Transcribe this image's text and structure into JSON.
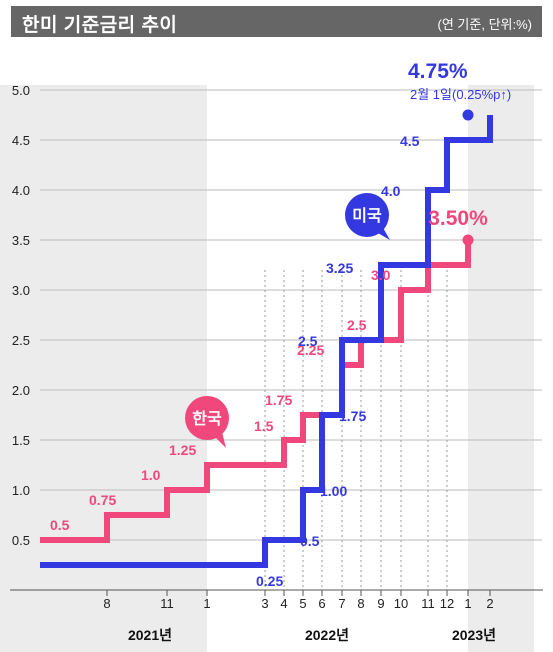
{
  "header": {
    "title": "한미 기준금리 추이",
    "unit": "(연 기준, 단위:%)"
  },
  "colors": {
    "us": "#3438e0",
    "kr": "#f0477d",
    "shade": "#ececec",
    "grid": "#bbbbbb",
    "title_bg": "#666666"
  },
  "chart_data": {
    "type": "line",
    "subtype": "step",
    "title": "한미 기준금리 추이",
    "unit": "(연 기준, 단위:%)",
    "ylim": [
      0,
      5.0
    ],
    "y_ticks": [
      "0.5",
      "1.0",
      "1.5",
      "2.0",
      "2.5",
      "3.0",
      "3.5",
      "4.0",
      "4.5",
      "5.0"
    ],
    "y_tick_values": [
      0.5,
      1.0,
      1.5,
      2.0,
      2.5,
      3.0,
      3.5,
      4.0,
      4.5,
      5.0
    ],
    "x_ticks": [
      "8",
      "11",
      "1",
      "3",
      "4",
      "5",
      "6",
      "7",
      "8",
      "9",
      "10",
      "11",
      "12",
      "1",
      "2"
    ],
    "x_tick_dates": [
      "2021-08",
      "2021-11",
      "2022-01",
      "2022-03",
      "2022-04",
      "2022-05",
      "2022-06",
      "2022-07",
      "2022-08",
      "2022-09",
      "2022-10",
      "2022-11",
      "2022-12",
      "2023-01",
      "2023-02"
    ],
    "years": [
      {
        "label": "2021년",
        "from": "2021-02",
        "to": "2022-01",
        "shaded": true
      },
      {
        "label": "2022년",
        "from": "2022-01",
        "to": "2023-01",
        "shaded": false
      },
      {
        "label": "2023년",
        "from": "2023-01",
        "to": "2023-03",
        "shaded": true
      }
    ],
    "grid": true,
    "series": [
      {
        "name": "미국",
        "steps": [
          {
            "from": "2021-02",
            "value": 0.25
          },
          {
            "from": "2022-03",
            "value": 0.5
          },
          {
            "from": "2022-05",
            "value": 1.0
          },
          {
            "from": "2022-06",
            "value": 1.75
          },
          {
            "from": "2022-07",
            "value": 2.5
          },
          {
            "from": "2022-09",
            "value": 3.25
          },
          {
            "from": "2022-11",
            "value": 4.0
          },
          {
            "from": "2022-12",
            "value": 4.5
          },
          {
            "from": "2023-02",
            "value": 4.75
          }
        ],
        "end": "2023-02",
        "step_labels": [
          "0.25",
          "0.5",
          "1.00",
          "1.75",
          "2.5",
          "3.25",
          "4.0",
          "4.5"
        ],
        "final_label": "4.75%",
        "final_note": "2월 1일(0.25%p↑)"
      },
      {
        "name": "한국",
        "steps": [
          {
            "from": "2021-02",
            "value": 0.5
          },
          {
            "from": "2021-08",
            "value": 0.75
          },
          {
            "from": "2021-11",
            "value": 1.0
          },
          {
            "from": "2022-01",
            "value": 1.25
          },
          {
            "from": "2022-04",
            "value": 1.5
          },
          {
            "from": "2022-05",
            "value": 1.75
          },
          {
            "from": "2022-07",
            "value": 2.25
          },
          {
            "from": "2022-08",
            "value": 2.5
          },
          {
            "from": "2022-10",
            "value": 3.0
          },
          {
            "from": "2022-11",
            "value": 3.25
          },
          {
            "from": "2023-01",
            "value": 3.5
          }
        ],
        "end": "2023-02",
        "step_labels": [
          "0.5",
          "0.75",
          "1.0",
          "1.25",
          "1.5",
          "1.75",
          "2.25",
          "2.5",
          "3.0"
        ],
        "final_label": "3.50%"
      }
    ]
  }
}
